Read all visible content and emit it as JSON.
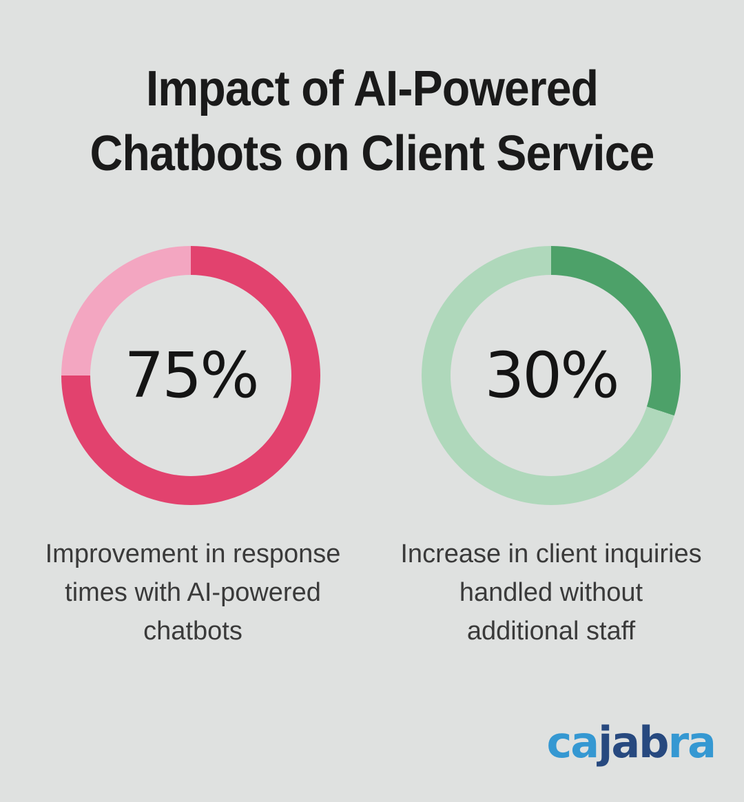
{
  "background_color": "#dfe1e0",
  "title": {
    "text": "Impact of AI-Powered Chatbots on Client Service",
    "lines": [
      "Impact of AI-Powered",
      "Chatbots on Client Service"
    ],
    "color": "#1a1a1a"
  },
  "chart_data": [
    {
      "type": "pie",
      "subtype": "donut",
      "value": 75,
      "remainder": 25,
      "value_label": "75%",
      "start_angle_deg": 0,
      "direction": "clockwise",
      "caption": "Improvement in response times with AI-powered chatbots",
      "caption_lines": [
        "Improvement in response",
        "times with AI-powered",
        "chatbots"
      ],
      "colors": {
        "value_arc": "#e2426e",
        "remainder_arc": "#f3a6c1",
        "value_text": "#141414"
      }
    },
    {
      "type": "pie",
      "subtype": "donut",
      "value": 30,
      "remainder": 70,
      "value_label": "30%",
      "start_angle_deg": 0,
      "direction": "clockwise",
      "caption": "Increase in client inquiries handled without additional staff",
      "caption_lines": [
        "Increase in client inquiries",
        "handled without",
        "additional staff"
      ],
      "colors": {
        "value_arc": "#4da169",
        "remainder_arc": "#afd8bb",
        "value_text": "#141414"
      }
    }
  ],
  "caption_color": "#3a3a3a",
  "logo": {
    "text": "cajabra",
    "segments": [
      {
        "text": "ca",
        "color": "#3598d2"
      },
      {
        "text": "jab",
        "color": "#27497f"
      },
      {
        "text": "ra",
        "color": "#3598d2"
      }
    ]
  }
}
